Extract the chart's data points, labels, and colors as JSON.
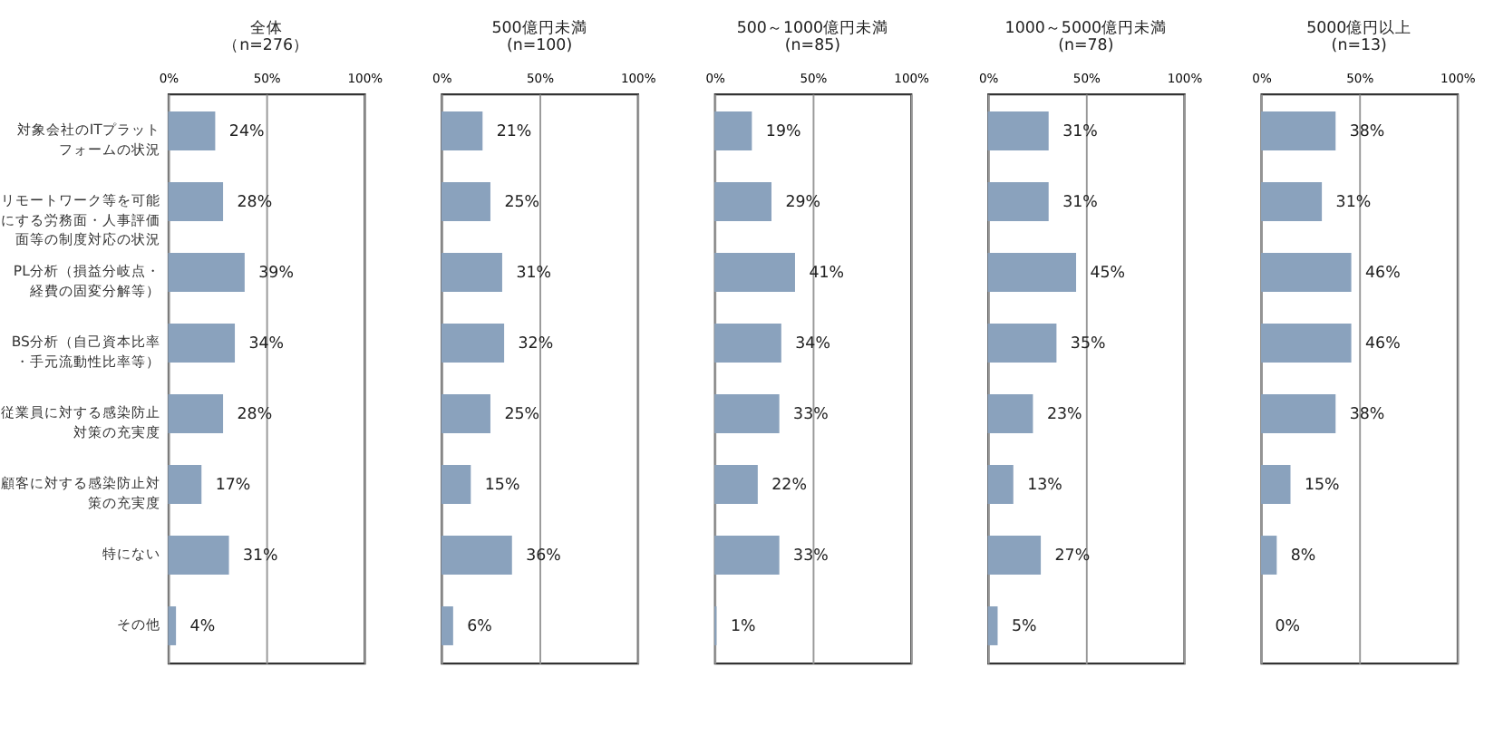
{
  "chart_data": [
    {
      "type": "bar",
      "orientation": "horizontal",
      "title": "全体",
      "subtitle": "（n=276）",
      "categories": [
        "対象会社のITプラットフォームの状況",
        "リモートワーク等を可能にする労務面・人事評価面等の制度対応の状況",
        "PL分析（損益分岐点・経費の固変分解等）",
        "BS分析（自己資本比率・手元流動性比率等）",
        "従業員に対する感染防止対策の充実度",
        "顧客に対する感染防止対策の充実度",
        "特にない",
        "その他"
      ],
      "values": [
        24,
        28,
        39,
        34,
        28,
        17,
        31,
        4
      ],
      "value_labels": [
        "24%",
        "28%",
        "39%",
        "34%",
        "28%",
        "17%",
        "31%",
        "4%"
      ],
      "color": "#8aa2bd",
      "xlim": [
        0,
        100
      ],
      "xticks": [
        {
          "value": 0,
          "label": "0%"
        },
        {
          "value": 50,
          "label": "50%"
        },
        {
          "value": 100,
          "label": "100%"
        }
      ],
      "grid": "x"
    },
    {
      "type": "bar",
      "orientation": "horizontal",
      "title": "500億円未満",
      "subtitle": "(n=100)",
      "categories": [
        "対象会社のITプラットフォームの状況",
        "リモートワーク等を可能にする労務面・人事評価面等の制度対応の状況",
        "PL分析（損益分岐点・経費の固変分解等）",
        "BS分析（自己資本比率・手元流動性比率等）",
        "従業員に対する感染防止対策の充実度",
        "顧客に対する感染防止対策の充実度",
        "特にない",
        "その他"
      ],
      "values": [
        21,
        25,
        31,
        32,
        25,
        15,
        36,
        6
      ],
      "value_labels": [
        "21%",
        "25%",
        "31%",
        "32%",
        "25%",
        "15%",
        "36%",
        "6%"
      ],
      "color": "#8aa2bd",
      "xlim": [
        0,
        100
      ],
      "xticks": [
        {
          "value": 0,
          "label": "0%"
        },
        {
          "value": 50,
          "label": "50%"
        },
        {
          "value": 100,
          "label": "100%"
        }
      ],
      "grid": "x",
      "tick_labels": "x"
    },
    {
      "type": "bar",
      "orientation": "horizontal",
      "title": "500～1000億円未満",
      "subtitle": "(n=85)",
      "categories": [
        "対象会社のITプラットフォームの状況",
        "リモートワーク等を可能にする労務面・人事評価面等の制度対応の状況",
        "PL分析（損益分岐点・経費の固変分解等）",
        "BS分析（自己資本比率・手元流動性比率等）",
        "従業員に対する感染防止対策の充実度",
        "顧客に対する感染防止対策の充実度",
        "特にない",
        "その他"
      ],
      "values": [
        19,
        29,
        41,
        34,
        33,
        22,
        33,
        1
      ],
      "value_labels": [
        "19%",
        "29%",
        "41%",
        "34%",
        "33%",
        "22%",
        "33%",
        "1%"
      ],
      "color": "#8aa2bd",
      "xlim": [
        0,
        100
      ],
      "xticks": [
        {
          "value": 0,
          "label": "0%"
        },
        {
          "value": 50,
          "label": "50%"
        },
        {
          "value": 100,
          "label": "100%"
        }
      ],
      "grid": "x",
      "tick_labels": "x"
    },
    {
      "type": "bar",
      "orientation": "horizontal",
      "title": "1000～5000億円未満",
      "subtitle": "(n=78)",
      "categories": [
        "対象会社のITプラットフォームの状況",
        "リモートワーク等を可能にする労務面・人事評価面等の制度対応の状況",
        "PL分析（損益分岐点・経費の固変分解等）",
        "BS分析（自己資本比率・手元流動性比率等）",
        "従業員に対する感染防止対策の充実度",
        "顧客に対する感染防止対策の充実度",
        "特にない",
        "その他"
      ],
      "values": [
        31,
        31,
        45,
        35,
        23,
        13,
        27,
        5
      ],
      "value_labels": [
        "31%",
        "31%",
        "45%",
        "35%",
        "23%",
        "13%",
        "27%",
        "5%"
      ],
      "color": "#8aa2bd",
      "xlim": [
        0,
        100
      ],
      "xticks": [
        {
          "value": 0,
          "label": "0%"
        },
        {
          "value": 50,
          "label": "50%"
        },
        {
          "value": 100,
          "label": "100%"
        }
      ],
      "grid": "x",
      "tick_labels": "x"
    },
    {
      "type": "bar",
      "orientation": "horizontal",
      "title": "5000億円以上",
      "subtitle": "(n=13)",
      "categories": [
        "対象会社のITプラットフォームの状況",
        "リモートワーク等を可能にする労務面・人事評価面等の制度対応の状況",
        "PL分析（損益分岐点・経費の固変分解等）",
        "BS分析（自己資本比率・手元流動性比率等）",
        "従業員に対する感染防止対策の充実度",
        "顧客に対する感染防止対策の充実度",
        "特にない",
        "その他"
      ],
      "values": [
        38,
        31,
        46,
        46,
        38,
        15,
        8,
        0
      ],
      "value_labels": [
        "38%",
        "31%",
        "46%",
        "46%",
        "38%",
        "15%",
        "8%",
        "0%"
      ],
      "color": "#8aa2bd",
      "xlim": [
        0,
        100
      ],
      "xticks": [
        {
          "value": 0,
          "label": "0%"
        },
        {
          "value": 50,
          "label": "50%"
        },
        {
          "value": 100,
          "label": "100%"
        }
      ],
      "grid": "x",
      "tick_labels": "x"
    }
  ]
}
